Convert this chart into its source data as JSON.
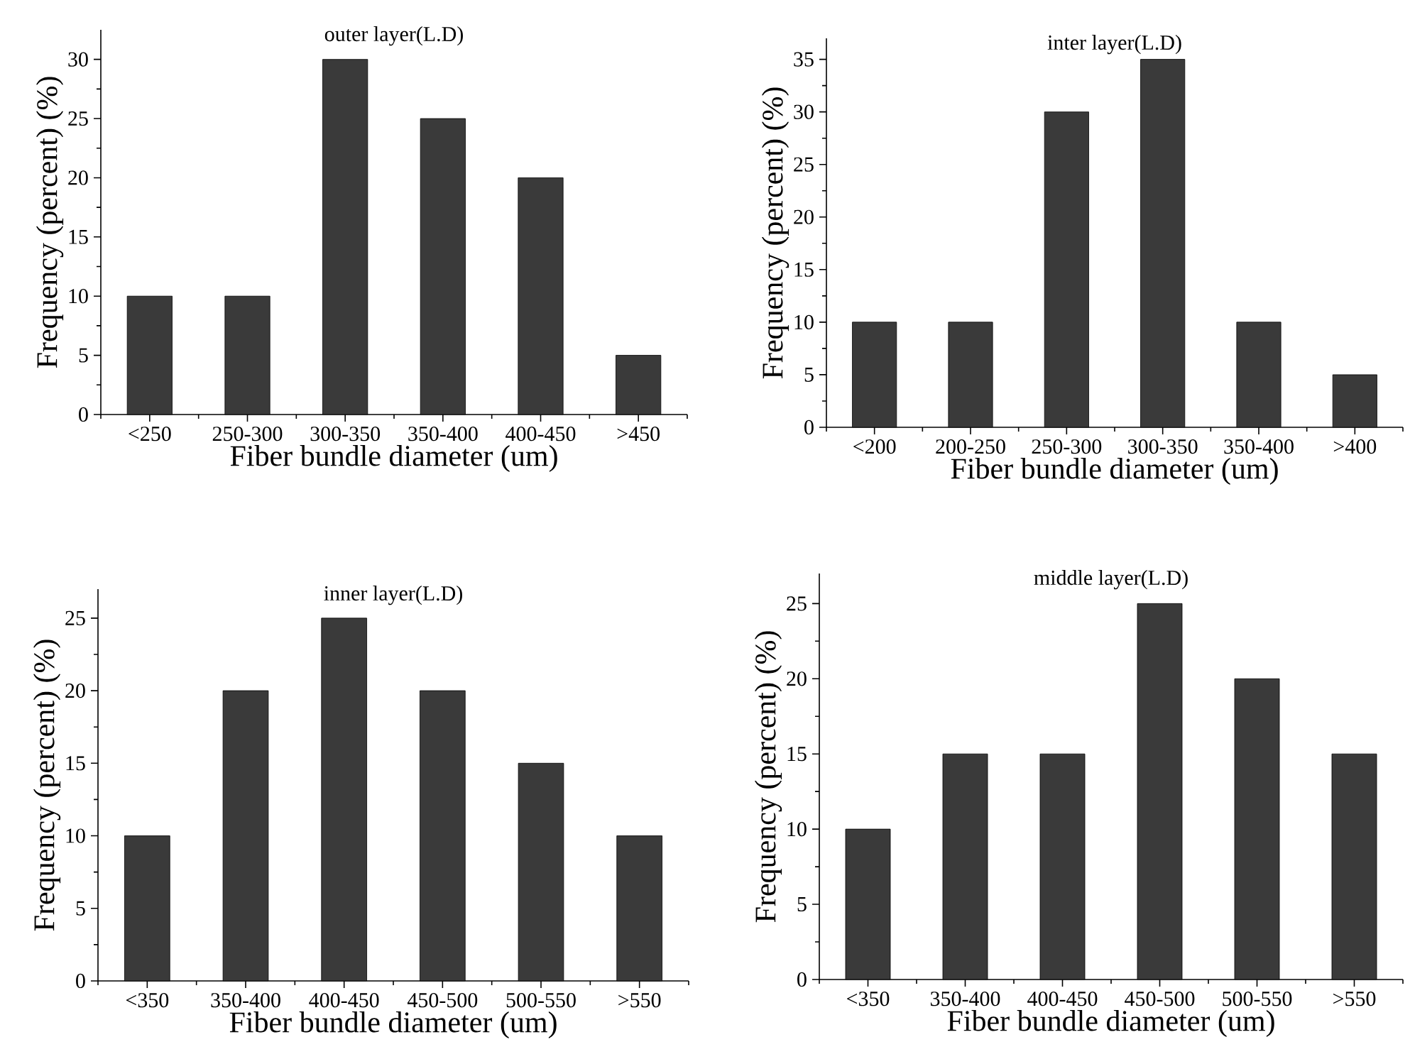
{
  "chart_data": [
    {
      "type": "bar",
      "title": "outer layer(L.D)",
      "xlabel": "Fiber bundle diameter (um)",
      "ylabel": "Frequency (percent) (%)",
      "categories": [
        "<250",
        "250-300",
        "300-350",
        "350-400",
        "400-450",
        ">450"
      ],
      "values": [
        10,
        10,
        30,
        25,
        20,
        5
      ],
      "color": "#3a3a3a",
      "ylim": [
        0,
        32.5
      ],
      "yticks": [
        0,
        5,
        10,
        15,
        20,
        25,
        30
      ]
    },
    {
      "type": "bar",
      "title": "inter layer(L.D)",
      "xlabel": "Fiber bundle diameter (um)",
      "ylabel": "Frequency (percent) (%)",
      "categories": [
        "<200",
        "200-250",
        "250-300",
        "300-350",
        "350-400",
        ">400"
      ],
      "values": [
        10,
        10,
        30,
        35,
        10,
        5
      ],
      "color": "#3a3a3a",
      "ylim": [
        0,
        37
      ],
      "yticks": [
        0,
        5,
        10,
        15,
        20,
        25,
        30,
        35
      ]
    },
    {
      "type": "bar",
      "title": "inner layer(L.D)",
      "xlabel": "Fiber bundle diameter (um)",
      "ylabel": "Frequency (percent) (%)",
      "categories": [
        "<350",
        "350-400",
        "400-450",
        "450-500",
        "500-550",
        ">550"
      ],
      "values": [
        10,
        20,
        25,
        20,
        15,
        10
      ],
      "color": "#3a3a3a",
      "ylim": [
        0,
        27
      ],
      "yticks": [
        0,
        5,
        10,
        15,
        20,
        25
      ]
    },
    {
      "type": "bar",
      "title": "middle layer(L.D)",
      "xlabel": "Fiber bundle diameter (um)",
      "ylabel": "Frequency (percent) (%)",
      "categories": [
        "<350",
        "350-400",
        "400-450",
        "450-500",
        "500-550",
        ">550"
      ],
      "values": [
        10,
        15,
        15,
        25,
        20,
        15
      ],
      "color": "#3a3a3a",
      "ylim": [
        0,
        27
      ],
      "yticks": [
        0,
        5,
        10,
        15,
        20,
        25
      ]
    }
  ]
}
